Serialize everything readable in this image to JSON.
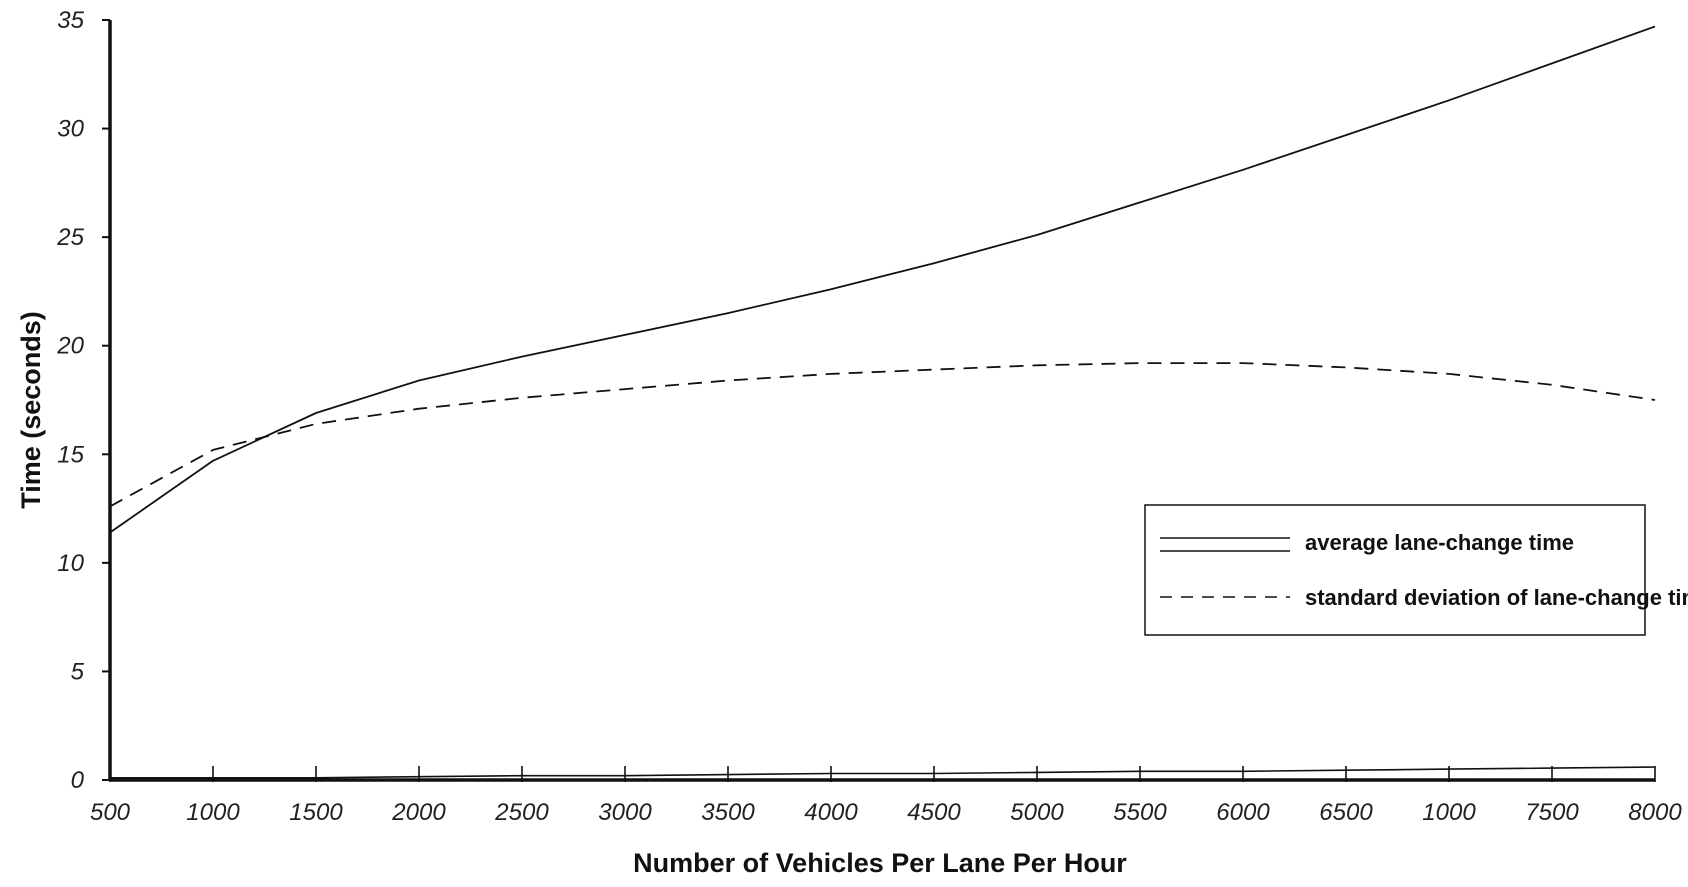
{
  "chart_data": {
    "type": "line",
    "title": "",
    "xlabel": "Number of Vehicles Per Lane Per Hour",
    "ylabel": "Time (seconds)",
    "x": [
      500,
      1000,
      1500,
      2000,
      2500,
      3000,
      3500,
      4000,
      4500,
      5000,
      5500,
      6000,
      6500,
      1000,
      7500,
      8000
    ],
    "x_tick_labels": [
      "500",
      "1000",
      "1500",
      "2000",
      "2500",
      "3000",
      "3500",
      "4000",
      "4500",
      "5000",
      "5500",
      "6000",
      "6500",
      "1000",
      "7500",
      "8000"
    ],
    "y_ticks": [
      0,
      5,
      10,
      15,
      20,
      25,
      30,
      35
    ],
    "ylim": [
      0,
      35
    ],
    "xlim": [
      500,
      8000
    ],
    "grid": false,
    "legend_position": "right",
    "series": [
      {
        "name": "average lane-change time",
        "style": "solid",
        "values": [
          11.4,
          14.7,
          16.9,
          18.4,
          19.5,
          20.5,
          21.5,
          22.6,
          23.8,
          25.1,
          26.6,
          28.1,
          29.7,
          31.3,
          33.0,
          34.7
        ]
      },
      {
        "name": "standard deviation of lane-change time",
        "style": "dashed",
        "values": [
          12.6,
          15.2,
          16.4,
          17.1,
          17.6,
          18.0,
          18.4,
          18.7,
          18.9,
          19.1,
          19.2,
          19.2,
          19.0,
          18.7,
          18.2,
          17.5
        ]
      }
    ],
    "baseline_values": [
      0.1,
      0.1,
      0.1,
      0.15,
      0.2,
      0.2,
      0.25,
      0.3,
      0.3,
      0.35,
      0.4,
      0.4,
      0.45,
      0.5,
      0.55,
      0.6
    ]
  },
  "colors": {
    "line": "#111111",
    "background": "#ffffff"
  }
}
